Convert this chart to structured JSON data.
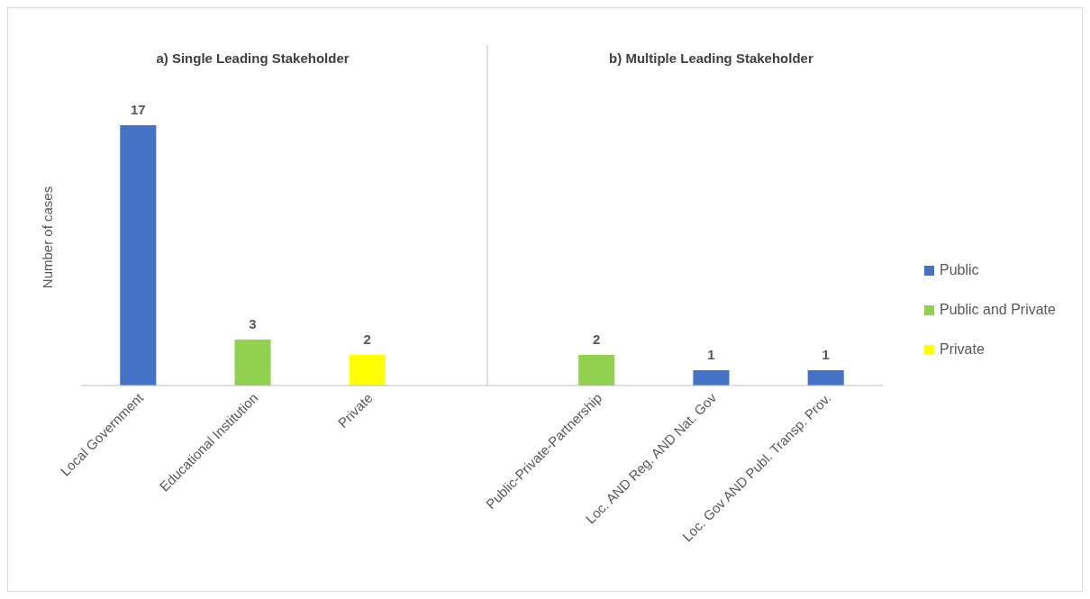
{
  "chart_data": {
    "type": "bar",
    "ylabel": "Number of cases",
    "annotations": [
      "a) Single Leading Stakeholder",
      "b) Multiple Leading Stakeholder"
    ],
    "categories": [
      "Local Government",
      "Educational Institution",
      "Private",
      null,
      "Public-Private-Partnership",
      "Loc. AND Reg. AND  Nat. Gov",
      "Loc. Gov AND Publ. Transp. Prov."
    ],
    "stacked": true,
    "data_labels": true,
    "legend": "right",
    "tick_labels": "x",
    "series": [
      {
        "name": "Public",
        "color": "#4472c4",
        "values": [
          17,
          null,
          null,
          null,
          null,
          1,
          1
        ]
      },
      {
        "name": "Public and Private",
        "color": "#92d050",
        "values": [
          null,
          3,
          null,
          null,
          2,
          null,
          null
        ]
      },
      {
        "name": "Private",
        "color": "#ffff00",
        "values": [
          null,
          null,
          2,
          null,
          null,
          null,
          null
        ]
      }
    ]
  }
}
